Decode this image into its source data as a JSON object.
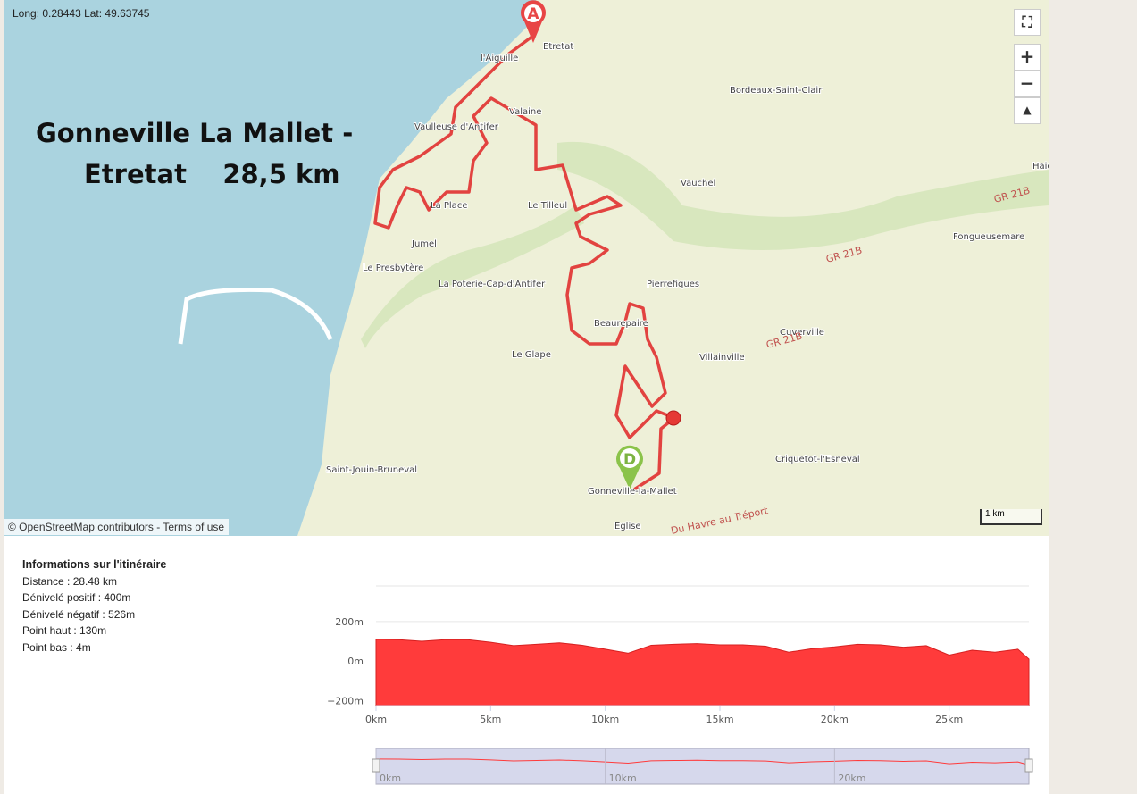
{
  "map": {
    "coordinates": "Long: 0.28443 Lat: 49.63745",
    "title": [
      "Gonneville La Mallet -",
      "Etretat    28,5 km"
    ],
    "places": [
      "Etretat",
      "l'Aiguille",
      "Valaine",
      "Vaulleuse d'Antifer",
      "Bordeaux-Saint-Clair",
      "La Place",
      "Le Tilleul",
      "Vauchel",
      "Jumel",
      "Le Presbytère",
      "La Poterie-Cap-d'Antifer",
      "Pierrefiques",
      "Beaurepaire",
      "Le Glape",
      "Villainville",
      "Cuverville",
      "Fongueusemare",
      "Saint-Jouin-Bruneval",
      "Criquetot-l'Esneval",
      "Gonneville-la-Mallet",
      "Eglise",
      "GR 21B",
      "GR 21B",
      "GR 21B",
      "Du Havre au Tréport",
      "Haie"
    ],
    "markers": {
      "start": "A",
      "end": "D"
    },
    "controls": {
      "zoom_in": "+",
      "zoom_out": "−"
    },
    "attribution": "© OpenStreetMap contributors - Terms of use",
    "scale": "1 km"
  },
  "info": {
    "heading": "Informations sur l'itinéraire",
    "lines": [
      "Distance : 28.48 km",
      "Dénivelé positif : 400m",
      "Dénivelé négatif : 526m",
      "Point haut : 130m",
      "Point bas : 4m"
    ]
  },
  "chart_data": {
    "type": "area",
    "color": "#ff3b3b",
    "x": [
      0,
      1,
      2,
      3,
      4,
      5,
      6,
      7,
      8,
      9,
      10,
      11,
      12,
      13,
      14,
      15,
      16,
      17,
      18,
      19,
      20,
      21,
      22,
      23,
      24,
      25,
      26,
      27,
      28,
      28.48
    ],
    "values": [
      110,
      108,
      100,
      108,
      108,
      95,
      78,
      85,
      92,
      80,
      60,
      40,
      80,
      85,
      88,
      82,
      82,
      75,
      45,
      62,
      72,
      85,
      82,
      70,
      78,
      30,
      55,
      45,
      60,
      10
    ],
    "xlim": [
      0,
      28.48
    ],
    "ylim": [
      -225,
      380
    ],
    "xticks": [
      {
        "value": 0,
        "label": "0km"
      },
      {
        "value": 5,
        "label": "5km"
      },
      {
        "value": 10,
        "label": "10km"
      },
      {
        "value": 15,
        "label": "15km"
      },
      {
        "value": 20,
        "label": "20km"
      },
      {
        "value": 25,
        "label": "25km"
      }
    ],
    "yticks": [
      {
        "value": 200,
        "label": "200m"
      },
      {
        "value": 0,
        "label": "0m"
      },
      {
        "value": -200,
        "label": "−200m"
      }
    ],
    "navigator_xticks": [
      {
        "value": 0,
        "label": "0km"
      },
      {
        "value": 10,
        "label": "10km"
      },
      {
        "value": 20,
        "label": "20km"
      }
    ]
  }
}
